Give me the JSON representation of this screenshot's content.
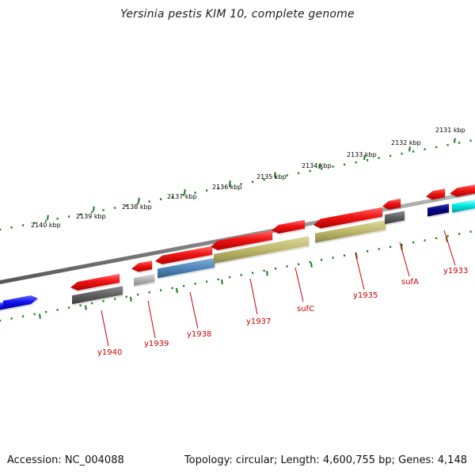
{
  "title": "Yersinia pestis KIM 10, complete genome",
  "accession": "Accession: NC_004088",
  "summary": "Topology: circular; Length: 4,600,755 bp; Genes: 4,148",
  "colors": {
    "backbone": "#8a8a8a",
    "ticks": "#1a7a1a",
    "label": "#cc0000",
    "forward_cds": "#e81010",
    "blue_cds": "#1010e0",
    "navy_cds": "#000080",
    "cyan_cds": "#00e5e5",
    "cog_dark": "#666666",
    "cog_light": "#b0b0b0",
    "cog_steel": "#4f86b8",
    "cog_olive": "#bdb76b"
  },
  "scale_labels": [
    "2131 kbp",
    "2132 kbp",
    "2133 kbp",
    "2134 kbp",
    "2135 kbp",
    "2136 kbp",
    "2137 kbp",
    "2138 kbp",
    "2139 kbp",
    "2140 kbp"
  ],
  "gene_labels": [
    "y1933",
    "sufA",
    "y1935",
    "sufC",
    "y1937",
    "y1938",
    "y1939",
    "y1940"
  ]
}
